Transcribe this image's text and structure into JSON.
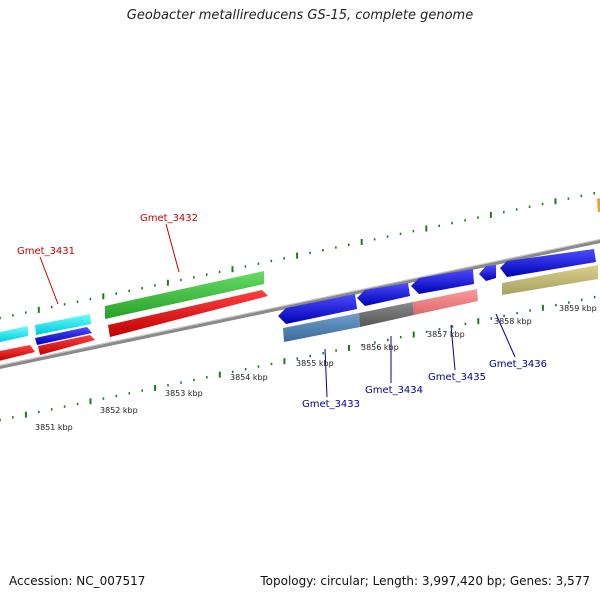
{
  "title": "Geobacter metallireducens GS-15, complete genome",
  "footer": {
    "accession": "Accession: NC_007517",
    "summary": "Topology: circular; Length: 3,997,420 bp; Genes: 3,577"
  },
  "kbp_labels": [
    "3851 kbp",
    "3852 kbp",
    "3853 kbp",
    "3854 kbp",
    "3855 kbp",
    "3856 kbp",
    "3857 kbp",
    "3858 kbp",
    "3859 kbp"
  ],
  "genes": {
    "gmet_3431": "Gmet_3431",
    "gmet_3432": "Gmet_3432",
    "gmet_3433": "Gmet_3433",
    "gmet_3434": "Gmet_3434",
    "gmet_3435": "Gmet_3435",
    "gmet_3436": "Gmet_3436"
  },
  "colors": {
    "forward_label": "#cc0000",
    "reverse_label": "#000099",
    "tick": "#1f7a1f",
    "backbone": "#808080"
  }
}
